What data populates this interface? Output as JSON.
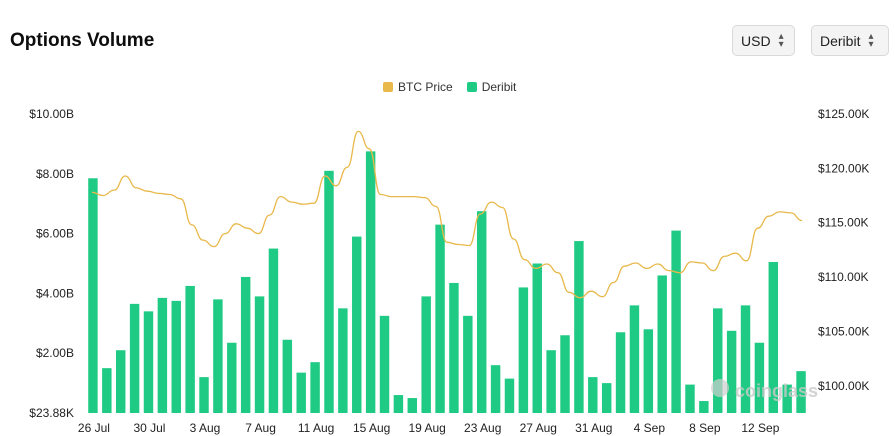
{
  "header": {
    "title": "Options Volume",
    "currency_label": "USD",
    "exchange_label": "Deribit"
  },
  "legend": [
    {
      "label": "BTC Price",
      "color": "#e8b84a"
    },
    {
      "label": "Deribit",
      "color": "#1fcb84"
    }
  ],
  "watermark": "coinglass",
  "colors": {
    "bar": "#1fcb84",
    "line": "#e8b84a"
  },
  "chart_data": {
    "type": "bar",
    "x_tick_labels": [
      "26 Jul",
      "30 Jul",
      "3 Aug",
      "7 Aug",
      "11 Aug",
      "15 Aug",
      "19 Aug",
      "23 Aug",
      "27 Aug",
      "31 Aug",
      "4 Sep",
      "8 Sep",
      "12 Sep"
    ],
    "y_left_ticks": [
      "$23.88K",
      "$2.00B",
      "$4.00B",
      "$6.00B",
      "$8.00B",
      "$10.00B"
    ],
    "y_right_ticks": [
      "$100.00K",
      "$105.00K",
      "$110.00K",
      "$115.00K",
      "$120.00K",
      "$125.00K"
    ],
    "ylim_left": [
      0,
      10000000000
    ],
    "ylim_right": [
      97500,
      125000
    ],
    "series": [
      {
        "name": "Deribit",
        "type": "bar",
        "unit": "USD",
        "values": [
          7850000000.0,
          1500000000.0,
          2100000000.0,
          3650000000.0,
          3400000000.0,
          3850000000.0,
          3750000000.0,
          4250000000.0,
          1200000000.0,
          3800000000.0,
          2350000000.0,
          4550000000.0,
          3900000000.0,
          5500000000.0,
          2450000000.0,
          1350000000.0,
          1700000000.0,
          8100000000.0,
          3500000000.0,
          5900000000.0,
          8750000000.0,
          3250000000.0,
          600000000.0,
          500000000.0,
          3900000000.0,
          6300000000.0,
          4350000000.0,
          3250000000.0,
          6750000000.0,
          1600000000.0,
          1150000000.0,
          4200000000.0,
          5000000000.0,
          2100000000.0,
          2600000000.0,
          5750000000.0,
          1200000000.0,
          1000000000.0,
          2700000000.0,
          3600000000.0,
          2800000000.0,
          4600000000.0,
          6100000000.0,
          950000000.0,
          400000000.0,
          3500000000.0,
          2750000000.0,
          3600000000.0,
          2350000000.0,
          5050000000.0,
          950000000.0,
          1400000000.0
        ]
      },
      {
        "name": "BTC Price",
        "type": "line",
        "unit": "USD",
        "values": [
          117800,
          117500,
          118000,
          119300,
          118200,
          117900,
          117700,
          117600,
          117200,
          114800,
          113400,
          112800,
          114000,
          114900,
          114500,
          114000,
          115700,
          117400,
          116900,
          116700,
          116800,
          119300,
          118400,
          120100,
          123400,
          121800,
          117600,
          117400,
          117400,
          117400,
          117300,
          116500,
          113200,
          113000,
          112900,
          115800,
          116900,
          116400,
          113500,
          111600,
          110800,
          111200,
          110400,
          108600,
          108100,
          108700,
          108200,
          109500,
          111000,
          111300,
          110800,
          111200,
          110600,
          110400,
          111400,
          111300,
          110600,
          111900,
          112200,
          111500,
          114500,
          115600,
          116000,
          115900,
          115200
        ]
      }
    ]
  }
}
